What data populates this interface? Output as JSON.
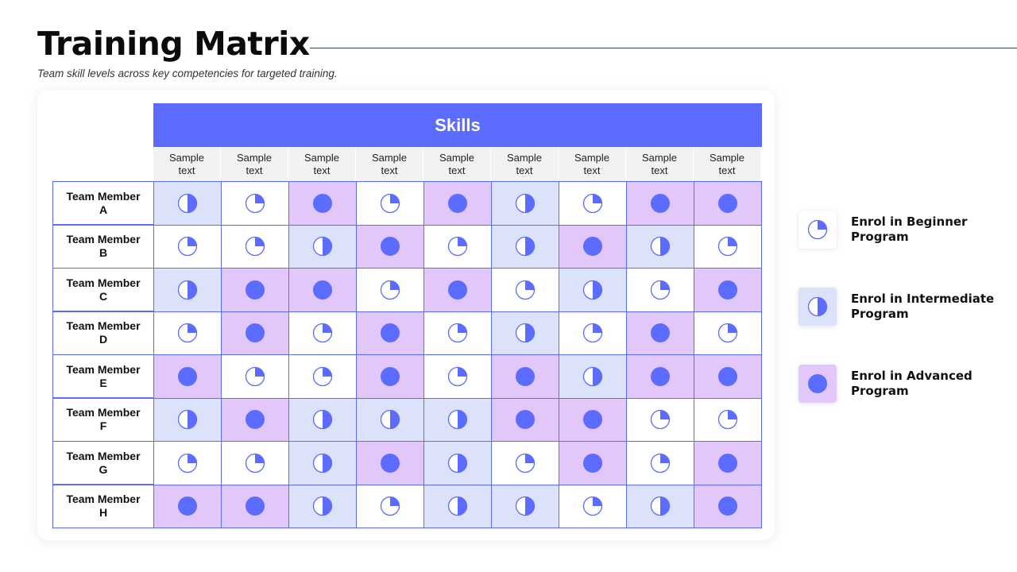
{
  "title": "Training Matrix",
  "subtitle": "Team skill levels across key competencies for targeted training.",
  "skills_header": "Skills",
  "columns": [
    "Sample text",
    "Sample text",
    "Sample text",
    "Sample text",
    "Sample text",
    "Sample text",
    "Sample text",
    "Sample text",
    "Sample text"
  ],
  "rows": [
    {
      "label": "Team Member A",
      "levels": [
        "intermediate",
        "beginner",
        "advanced",
        "beginner",
        "advanced",
        "intermediate",
        "beginner",
        "advanced",
        "advanced"
      ]
    },
    {
      "label": "Team Member B",
      "levels": [
        "beginner",
        "beginner",
        "intermediate",
        "advanced",
        "beginner",
        "intermediate",
        "advanced",
        "intermediate",
        "beginner"
      ]
    },
    {
      "label": "Team Member C",
      "levels": [
        "intermediate",
        "advanced",
        "advanced",
        "beginner",
        "advanced",
        "beginner",
        "intermediate",
        "beginner",
        "advanced"
      ]
    },
    {
      "label": "Team Member D",
      "levels": [
        "beginner",
        "advanced",
        "beginner",
        "advanced",
        "beginner",
        "intermediate",
        "beginner",
        "advanced",
        "beginner"
      ]
    },
    {
      "label": "Team Member E",
      "levels": [
        "advanced",
        "beginner",
        "beginner",
        "advanced",
        "beginner",
        "advanced",
        "intermediate",
        "advanced",
        "advanced"
      ]
    },
    {
      "label": "Team Member F",
      "levels": [
        "intermediate",
        "advanced",
        "intermediate",
        "intermediate",
        "intermediate",
        "advanced",
        "advanced",
        "beginner",
        "beginner"
      ]
    },
    {
      "label": "Team Member G",
      "levels": [
        "beginner",
        "beginner",
        "intermediate",
        "advanced",
        "intermediate",
        "beginner",
        "advanced",
        "beginner",
        "advanced"
      ]
    },
    {
      "label": "Team Member H",
      "levels": [
        "advanced",
        "advanced",
        "intermediate",
        "beginner",
        "intermediate",
        "intermediate",
        "beginner",
        "intermediate",
        "advanced"
      ]
    }
  ],
  "legend": [
    {
      "level": "beginner",
      "label": "Enrol in Beginner Program",
      "icon": "quarter-circle-icon"
    },
    {
      "level": "intermediate",
      "label": "Enrol in Intermediate Program",
      "icon": "half-circle-icon"
    },
    {
      "level": "advanced",
      "label": "Enrol in Advanced Program",
      "icon": "full-circle-icon"
    }
  ],
  "colors": {
    "accent": "#5b6cff",
    "beginner_bg": "#ffffff",
    "intermediate_bg": "#dde2fb",
    "advanced_bg": "#e2c8fa"
  }
}
